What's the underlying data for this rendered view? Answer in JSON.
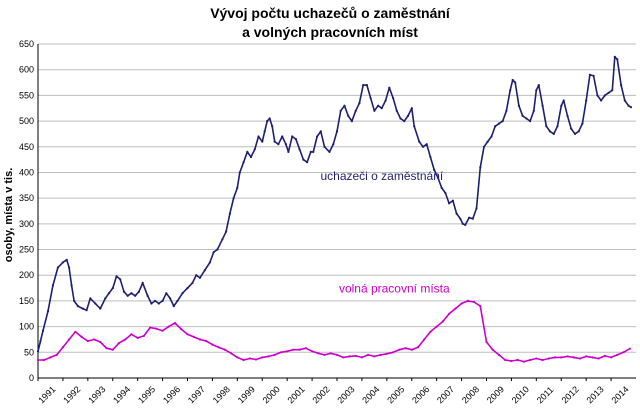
{
  "chart_data": {
    "type": "line",
    "title_lines": [
      "Vývoj počtu uchazečů o zaměstnání",
      "a volných pracovních míst"
    ],
    "xlabel": "",
    "ylabel": "osoby, místa v tis.",
    "ylim": [
      0,
      650
    ],
    "yticks": [
      0,
      50,
      100,
      150,
      200,
      250,
      300,
      350,
      400,
      450,
      500,
      550,
      600,
      650
    ],
    "xlim": [
      1991,
      2015
    ],
    "xticks": [
      "1991",
      "1992",
      "1993",
      "1994",
      "1995",
      "1996",
      "1997",
      "1998",
      "1999",
      "2000",
      "2001",
      "2002",
      "2003",
      "2004",
      "2005",
      "2006",
      "2007",
      "2008",
      "2009",
      "2010",
      "2011",
      "2012",
      "2013",
      "2014"
    ],
    "grid": true,
    "series": [
      {
        "name": "uchazeči o zaměstnání",
        "color": "#1f1f6e",
        "points": [
          [
            1991.0,
            52
          ],
          [
            1991.1,
            72
          ],
          [
            1991.2,
            92
          ],
          [
            1991.4,
            130
          ],
          [
            1991.6,
            180
          ],
          [
            1991.8,
            215
          ],
          [
            1992.0,
            225
          ],
          [
            1992.15,
            230
          ],
          [
            1992.25,
            215
          ],
          [
            1992.35,
            180
          ],
          [
            1992.45,
            150
          ],
          [
            1992.6,
            140
          ],
          [
            1992.8,
            135
          ],
          [
            1992.95,
            132
          ],
          [
            1993.1,
            155
          ],
          [
            1993.3,
            145
          ],
          [
            1993.5,
            135
          ],
          [
            1993.7,
            155
          ],
          [
            1993.85,
            165
          ],
          [
            1994.0,
            175
          ],
          [
            1994.15,
            198
          ],
          [
            1994.3,
            192
          ],
          [
            1994.45,
            168
          ],
          [
            1994.6,
            160
          ],
          [
            1994.75,
            165
          ],
          [
            1994.9,
            160
          ],
          [
            1995.05,
            168
          ],
          [
            1995.2,
            185
          ],
          [
            1995.4,
            160
          ],
          [
            1995.55,
            145
          ],
          [
            1995.7,
            150
          ],
          [
            1995.85,
            145
          ],
          [
            1996.0,
            150
          ],
          [
            1996.15,
            165
          ],
          [
            1996.3,
            155
          ],
          [
            1996.45,
            140
          ],
          [
            1996.6,
            150
          ],
          [
            1996.8,
            165
          ],
          [
            1997.0,
            175
          ],
          [
            1997.2,
            185
          ],
          [
            1997.35,
            200
          ],
          [
            1997.5,
            195
          ],
          [
            1997.7,
            210
          ],
          [
            1997.9,
            225
          ],
          [
            1998.05,
            245
          ],
          [
            1998.2,
            250
          ],
          [
            1998.4,
            270
          ],
          [
            1998.55,
            285
          ],
          [
            1998.7,
            320
          ],
          [
            1998.85,
            350
          ],
          [
            1999.0,
            370
          ],
          [
            1999.1,
            400
          ],
          [
            1999.25,
            420
          ],
          [
            1999.4,
            440
          ],
          [
            1999.55,
            430
          ],
          [
            1999.7,
            445
          ],
          [
            1999.85,
            470
          ],
          [
            2000.0,
            460
          ],
          [
            2000.1,
            480
          ],
          [
            2000.2,
            500
          ],
          [
            2000.3,
            505
          ],
          [
            2000.4,
            490
          ],
          [
            2000.5,
            460
          ],
          [
            2000.65,
            455
          ],
          [
            2000.8,
            470
          ],
          [
            2000.95,
            455
          ],
          [
            2001.05,
            440
          ],
          [
            2001.2,
            470
          ],
          [
            2001.35,
            465
          ],
          [
            2001.5,
            445
          ],
          [
            2001.65,
            425
          ],
          [
            2001.8,
            420
          ],
          [
            2001.95,
            440
          ],
          [
            2002.05,
            440
          ],
          [
            2002.2,
            470
          ],
          [
            2002.35,
            480
          ],
          [
            2002.5,
            450
          ],
          [
            2002.7,
            440
          ],
          [
            2002.85,
            455
          ],
          [
            2003.0,
            480
          ],
          [
            2003.15,
            520
          ],
          [
            2003.3,
            530
          ],
          [
            2003.45,
            510
          ],
          [
            2003.6,
            500
          ],
          [
            2003.75,
            520
          ],
          [
            2003.9,
            535
          ],
          [
            2004.05,
            570
          ],
          [
            2004.2,
            570
          ],
          [
            2004.35,
            545
          ],
          [
            2004.5,
            520
          ],
          [
            2004.65,
            530
          ],
          [
            2004.8,
            525
          ],
          [
            2004.95,
            540
          ],
          [
            2005.1,
            565
          ],
          [
            2005.25,
            545
          ],
          [
            2005.4,
            520
          ],
          [
            2005.55,
            505
          ],
          [
            2005.7,
            500
          ],
          [
            2005.85,
            510
          ],
          [
            2006.0,
            525
          ],
          [
            2006.1,
            490
          ],
          [
            2006.3,
            460
          ],
          [
            2006.45,
            450
          ],
          [
            2006.6,
            455
          ],
          [
            2006.75,
            430
          ],
          [
            2006.9,
            405
          ],
          [
            2007.05,
            390
          ],
          [
            2007.2,
            370
          ],
          [
            2007.35,
            360
          ],
          [
            2007.5,
            340
          ],
          [
            2007.65,
            345
          ],
          [
            2007.8,
            320
          ],
          [
            2007.95,
            310
          ],
          [
            2008.05,
            300
          ],
          [
            2008.15,
            298
          ],
          [
            2008.3,
            312
          ],
          [
            2008.45,
            310
          ],
          [
            2008.6,
            330
          ],
          [
            2008.75,
            410
          ],
          [
            2008.9,
            450
          ],
          [
            2009.05,
            460
          ],
          [
            2009.2,
            470
          ],
          [
            2009.35,
            490
          ],
          [
            2009.5,
            495
          ],
          [
            2009.65,
            500
          ],
          [
            2009.8,
            520
          ],
          [
            2009.95,
            560
          ],
          [
            2010.05,
            580
          ],
          [
            2010.15,
            575
          ],
          [
            2010.3,
            530
          ],
          [
            2010.45,
            510
          ],
          [
            2010.6,
            505
          ],
          [
            2010.75,
            500
          ],
          [
            2010.9,
            520
          ],
          [
            2011.0,
            560
          ],
          [
            2011.1,
            570
          ],
          [
            2011.25,
            530
          ],
          [
            2011.4,
            490
          ],
          [
            2011.55,
            480
          ],
          [
            2011.7,
            475
          ],
          [
            2011.85,
            490
          ],
          [
            2012.0,
            530
          ],
          [
            2012.1,
            540
          ],
          [
            2012.25,
            510
          ],
          [
            2012.4,
            485
          ],
          [
            2012.55,
            475
          ],
          [
            2012.7,
            480
          ],
          [
            2012.85,
            495
          ],
          [
            2013.0,
            540
          ],
          [
            2013.15,
            590
          ],
          [
            2013.3,
            588
          ],
          [
            2013.45,
            550
          ],
          [
            2013.6,
            540
          ],
          [
            2013.75,
            550
          ],
          [
            2013.9,
            555
          ],
          [
            2014.05,
            560
          ],
          [
            2014.15,
            625
          ],
          [
            2014.25,
            620
          ],
          [
            2014.4,
            570
          ],
          [
            2014.55,
            540
          ],
          [
            2014.7,
            530
          ],
          [
            2014.8,
            527
          ]
        ]
      },
      {
        "name": "volná pracovní místa",
        "color": "#cc00cc",
        "points": [
          [
            1991.0,
            35
          ],
          [
            1991.25,
            35
          ],
          [
            1991.5,
            40
          ],
          [
            1991.75,
            45
          ],
          [
            1992.0,
            60
          ],
          [
            1992.25,
            75
          ],
          [
            1992.5,
            90
          ],
          [
            1992.75,
            80
          ],
          [
            1993.0,
            72
          ],
          [
            1993.25,
            75
          ],
          [
            1993.5,
            70
          ],
          [
            1993.75,
            58
          ],
          [
            1994.0,
            55
          ],
          [
            1994.25,
            68
          ],
          [
            1994.5,
            75
          ],
          [
            1994.75,
            85
          ],
          [
            1995.0,
            78
          ],
          [
            1995.25,
            82
          ],
          [
            1995.5,
            98
          ],
          [
            1995.75,
            96
          ],
          [
            1996.0,
            92
          ],
          [
            1996.25,
            100
          ],
          [
            1996.5,
            107
          ],
          [
            1996.75,
            95
          ],
          [
            1997.0,
            85
          ],
          [
            1997.25,
            80
          ],
          [
            1997.5,
            75
          ],
          [
            1997.75,
            72
          ],
          [
            1998.0,
            65
          ],
          [
            1998.25,
            60
          ],
          [
            1998.5,
            55
          ],
          [
            1998.75,
            48
          ],
          [
            1999.0,
            40
          ],
          [
            1999.25,
            35
          ],
          [
            1999.5,
            38
          ],
          [
            1999.75,
            36
          ],
          [
            2000.0,
            40
          ],
          [
            2000.25,
            42
          ],
          [
            2000.5,
            45
          ],
          [
            2000.75,
            50
          ],
          [
            2001.0,
            52
          ],
          [
            2001.25,
            55
          ],
          [
            2001.5,
            55
          ],
          [
            2001.75,
            58
          ],
          [
            2002.0,
            52
          ],
          [
            2002.25,
            48
          ],
          [
            2002.5,
            45
          ],
          [
            2002.75,
            48
          ],
          [
            2003.0,
            45
          ],
          [
            2003.25,
            40
          ],
          [
            2003.5,
            42
          ],
          [
            2003.75,
            43
          ],
          [
            2004.0,
            40
          ],
          [
            2004.25,
            45
          ],
          [
            2004.5,
            42
          ],
          [
            2004.75,
            45
          ],
          [
            2005.0,
            47
          ],
          [
            2005.25,
            50
          ],
          [
            2005.5,
            55
          ],
          [
            2005.75,
            58
          ],
          [
            2006.0,
            55
          ],
          [
            2006.25,
            60
          ],
          [
            2006.5,
            75
          ],
          [
            2006.75,
            90
          ],
          [
            2007.0,
            100
          ],
          [
            2007.25,
            110
          ],
          [
            2007.5,
            125
          ],
          [
            2007.75,
            135
          ],
          [
            2008.0,
            145
          ],
          [
            2008.25,
            150
          ],
          [
            2008.5,
            148
          ],
          [
            2008.75,
            140
          ],
          [
            2009.0,
            70
          ],
          [
            2009.25,
            55
          ],
          [
            2009.5,
            45
          ],
          [
            2009.75,
            35
          ],
          [
            2010.0,
            33
          ],
          [
            2010.25,
            35
          ],
          [
            2010.5,
            32
          ],
          [
            2010.75,
            35
          ],
          [
            2011.0,
            38
          ],
          [
            2011.25,
            35
          ],
          [
            2011.5,
            38
          ],
          [
            2011.75,
            40
          ],
          [
            2012.0,
            40
          ],
          [
            2012.25,
            42
          ],
          [
            2012.5,
            40
          ],
          [
            2012.75,
            38
          ],
          [
            2013.0,
            42
          ],
          [
            2013.25,
            40
          ],
          [
            2013.5,
            38
          ],
          [
            2013.75,
            43
          ],
          [
            2014.0,
            40
          ],
          [
            2014.25,
            45
          ],
          [
            2014.5,
            50
          ],
          [
            2014.75,
            57
          ]
        ]
      }
    ],
    "annotations": [
      {
        "text": "uchazeči o zaměstnání",
        "x": 2004.8,
        "y": 385,
        "color": "#1f1f6e"
      },
      {
        "text": "volná pracovní místa",
        "x": 2005.3,
        "y": 166,
        "color": "#cc00cc"
      }
    ]
  }
}
